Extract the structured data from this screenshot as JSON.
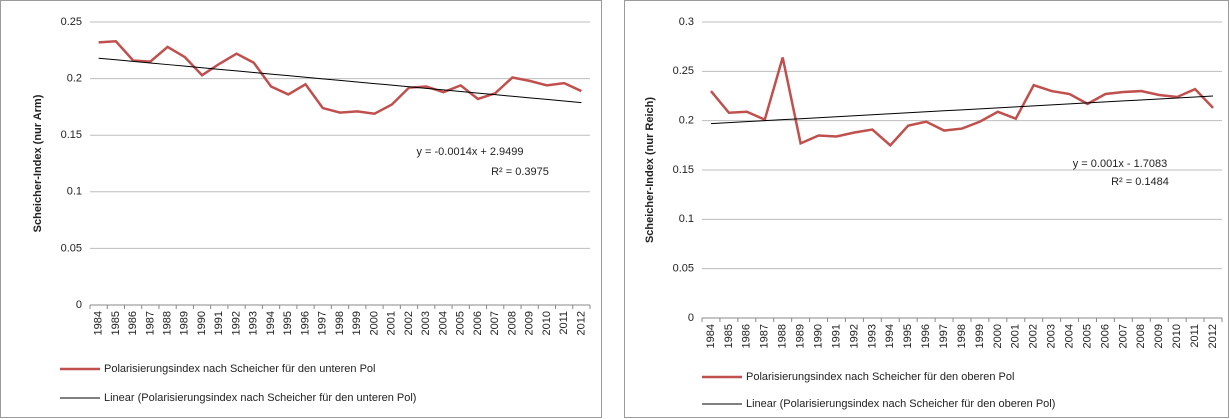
{
  "chart_data": [
    {
      "type": "line",
      "y_label": "Scheicher-Index (nur Arm)",
      "categories": [
        "1984",
        "1985",
        "1986",
        "1987",
        "1988",
        "1989",
        "1990",
        "1991",
        "1992",
        "1993",
        "1994",
        "1995",
        "1996",
        "1997",
        "1998",
        "1999",
        "2000",
        "2001",
        "2002",
        "2003",
        "2004",
        "2005",
        "2006",
        "2007",
        "2008",
        "2009",
        "2010",
        "2011",
        "2012"
      ],
      "series": [
        {
          "name": "Polarisierungsindex nach Scheicher für den unteren Pol",
          "color": "#c0504d",
          "values": [
            0.232,
            0.233,
            0.216,
            0.215,
            0.228,
            0.219,
            0.203,
            0.213,
            0.222,
            0.214,
            0.193,
            0.186,
            0.195,
            0.174,
            0.17,
            0.171,
            0.169,
            0.177,
            0.192,
            0.193,
            0.188,
            0.194,
            0.182,
            0.187,
            0.201,
            0.198,
            0.194,
            0.196,
            0.189
          ]
        },
        {
          "name": "Linear (Polarisierungsindex nach Scheicher für den unteren Pol)",
          "color": "#000000",
          "values": [
            0.218,
            0.2166,
            0.2152,
            0.2138,
            0.2124,
            0.211,
            0.2096,
            0.2082,
            0.2068,
            0.2054,
            0.204,
            0.2026,
            0.2012,
            0.1998,
            0.1984,
            0.197,
            0.1956,
            0.1942,
            0.1928,
            0.1914,
            0.19,
            0.1886,
            0.1872,
            0.1858,
            0.1844,
            0.183,
            0.1816,
            0.1802,
            0.1788
          ]
        }
      ],
      "annotations": [
        "y = -0.0014x + 2.9499",
        "R² = 0.3975"
      ],
      "ylim": [
        0,
        0.25
      ],
      "yticks": [
        0,
        0.05,
        0.1,
        0.15,
        0.2,
        0.25
      ],
      "grid": true
    },
    {
      "type": "line",
      "y_label": "Scheicher-Index (nur Reich)",
      "categories": [
        "1984",
        "1985",
        "1986",
        "1987",
        "1988",
        "1989",
        "1990",
        "1991",
        "1992",
        "1993",
        "1994",
        "1995",
        "1996",
        "1997",
        "1998",
        "1999",
        "2000",
        "2001",
        "2002",
        "2003",
        "2004",
        "2005",
        "2006",
        "2007",
        "2008",
        "2009",
        "2010",
        "2011",
        "2012"
      ],
      "series": [
        {
          "name": "Polarisierungsindex nach Scheicher für den oberen Pol",
          "color": "#c0504d",
          "values": [
            0.23,
            0.208,
            0.209,
            0.201,
            0.264,
            0.177,
            0.185,
            0.184,
            0.188,
            0.191,
            0.175,
            0.195,
            0.199,
            0.19,
            0.192,
            0.199,
            0.209,
            0.202,
            0.236,
            0.23,
            0.227,
            0.217,
            0.227,
            0.229,
            0.23,
            0.226,
            0.224,
            0.232,
            0.213
          ]
        },
        {
          "name": "Linear (Polarisierungsindex nach Scheicher für den oberen Pol)",
          "color": "#000000",
          "values": [
            0.197,
            0.198,
            0.199,
            0.2,
            0.201,
            0.202,
            0.203,
            0.204,
            0.205,
            0.206,
            0.207,
            0.208,
            0.209,
            0.21,
            0.211,
            0.212,
            0.213,
            0.214,
            0.215,
            0.216,
            0.217,
            0.218,
            0.219,
            0.22,
            0.221,
            0.222,
            0.223,
            0.224,
            0.225
          ]
        }
      ],
      "annotations": [
        "y = 0.001x - 1.7083",
        "R² = 0.1484"
      ],
      "ylim": [
        0,
        0.3
      ],
      "yticks": [
        0,
        0.05,
        0.1,
        0.15,
        0.2,
        0.25,
        0.3
      ],
      "grid": true
    }
  ]
}
